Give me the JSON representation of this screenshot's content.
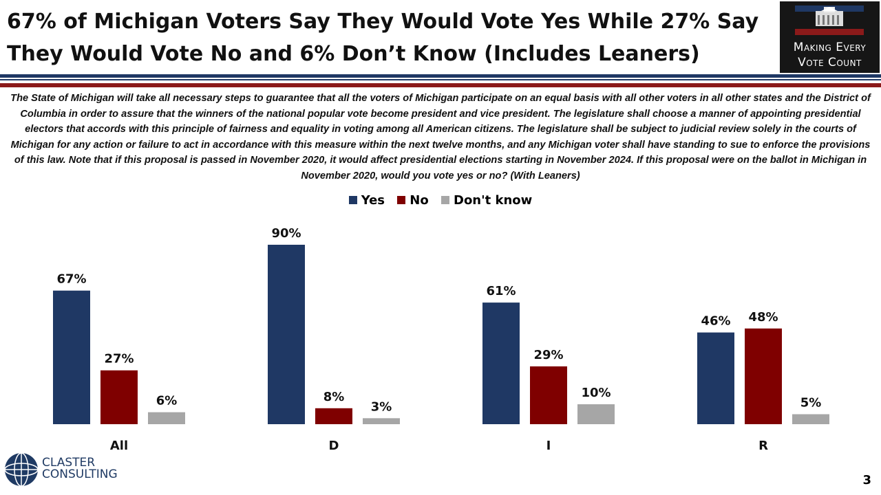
{
  "header": {
    "title": "67% of Michigan Voters Say They Would Vote Yes While 27% Say They Would Vote No and 6% Don’t Know (Includes Leaners)",
    "logo_line1": "Making Every",
    "logo_line2": "Vote Count"
  },
  "question": "The State of Michigan will take all necessary steps to guarantee that all the voters of Michigan participate on an equal basis with all other voters in all other states and the District of Columbia in order to assure that the winners of the national popular vote become president and vice president. The legislature shall choose a manner of appointing presidential electors that accords with this principle of fairness and equality in voting among all American citizens. The legislature shall be subject to judicial review solely in the courts of Michigan for any action or failure to act in accordance with this measure within the next twelve months, and any Michigan voter shall have standing to sue to enforce the provisions of this law. Note that if this proposal is passed in November 2020, it would affect presidential elections starting in November 2024. If this proposal were on the ballot in Michigan in November 2020, would you vote yes or no? (With Leaners)",
  "chart_data": {
    "type": "bar",
    "title": "",
    "categories": [
      "All",
      "D",
      "I",
      "R"
    ],
    "series": [
      {
        "name": "Yes",
        "color": "#1f3864",
        "values": [
          67,
          90,
          61,
          46
        ]
      },
      {
        "name": "No",
        "color": "#7f0000",
        "values": [
          27,
          8,
          29,
          48
        ]
      },
      {
        "name": "Don't know",
        "color": "#a6a6a6",
        "values": [
          6,
          3,
          10,
          5
        ]
      }
    ],
    "value_suffix": "%",
    "xlabel": "",
    "ylabel": "",
    "ylim": [
      0,
      100
    ],
    "grid": false,
    "legend": "top-center"
  },
  "footer": {
    "company_line1": "CLASTER",
    "company_line2": "CONSULTING",
    "page_number": "3"
  },
  "colors": {
    "rule_navy": "#1f3864",
    "rule_red": "#8b1a1a"
  }
}
